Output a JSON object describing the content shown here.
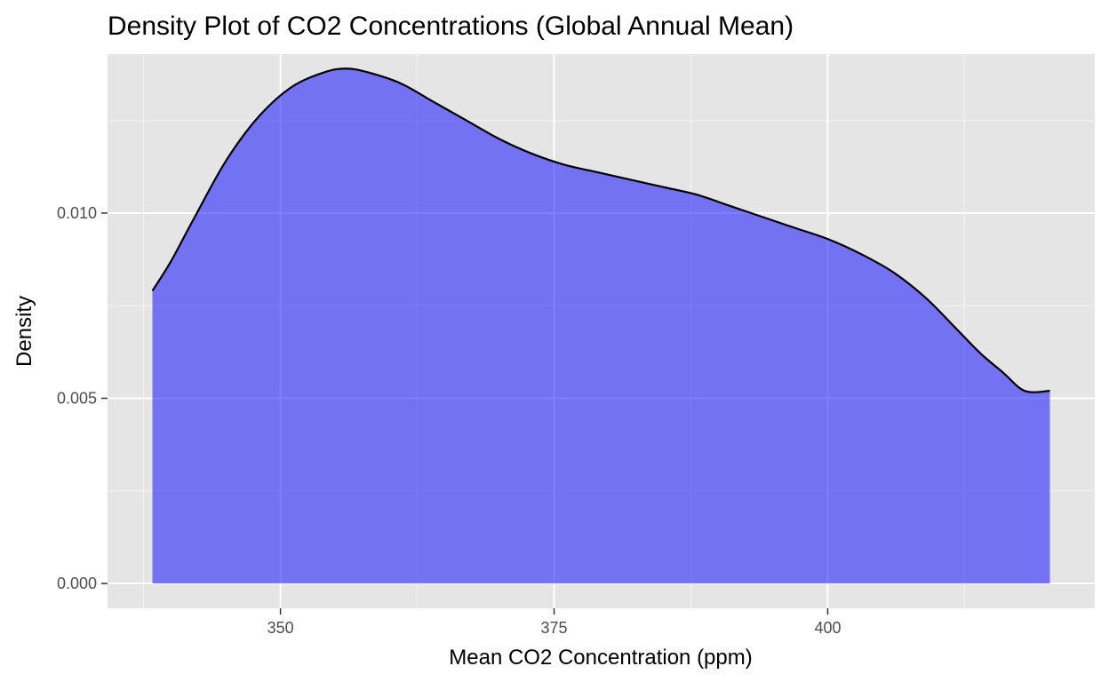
{
  "chart_data": {
    "type": "area",
    "title": "Density Plot of CO2 Concentrations (Global Annual Mean)",
    "xlabel": "Mean CO2 Concentration (ppm)",
    "ylabel": "Density",
    "xlim": [
      334.2,
      424.4
    ],
    "ylim": [
      -0.00067,
      0.01429
    ],
    "x_ticks": [
      {
        "value": 350,
        "label": "350"
      },
      {
        "value": 375,
        "label": "375"
      },
      {
        "value": 400,
        "label": "400"
      }
    ],
    "y_ticks": [
      {
        "value": 0.0,
        "label": "0.000"
      },
      {
        "value": 0.005,
        "label": "0.005"
      },
      {
        "value": 0.01,
        "label": "0.010"
      }
    ],
    "x_minor_ticks": [
      337.5,
      362.5,
      387.5,
      412.5
    ],
    "y_minor_ticks": [
      0.0025,
      0.0075,
      0.0125
    ],
    "grid": true,
    "legend": "none",
    "x": [
      338.3,
      340,
      342,
      345,
      348,
      351,
      354,
      356,
      358,
      361,
      364,
      367,
      370,
      373,
      376,
      379,
      382,
      385,
      388,
      391,
      394,
      397,
      400,
      403,
      406,
      409,
      412,
      414,
      416,
      418,
      420.3
    ],
    "y": [
      0.0079,
      0.0087,
      0.0098,
      0.0114,
      0.0126,
      0.0134,
      0.0138,
      0.0139,
      0.0138,
      0.0135,
      0.013,
      0.0125,
      0.012,
      0.0116,
      0.0113,
      0.0111,
      0.0109,
      0.0107,
      0.0105,
      0.0102,
      0.0099,
      0.0096,
      0.0093,
      0.0089,
      0.0084,
      0.0077,
      0.0068,
      0.0062,
      0.0057,
      0.0052,
      0.0052
    ],
    "colors": {
      "fill": "#0000ff",
      "fill_opacity": 0.5,
      "line": "#000000",
      "panel": "#e5e5e5",
      "grid": "#ffffff"
    }
  }
}
